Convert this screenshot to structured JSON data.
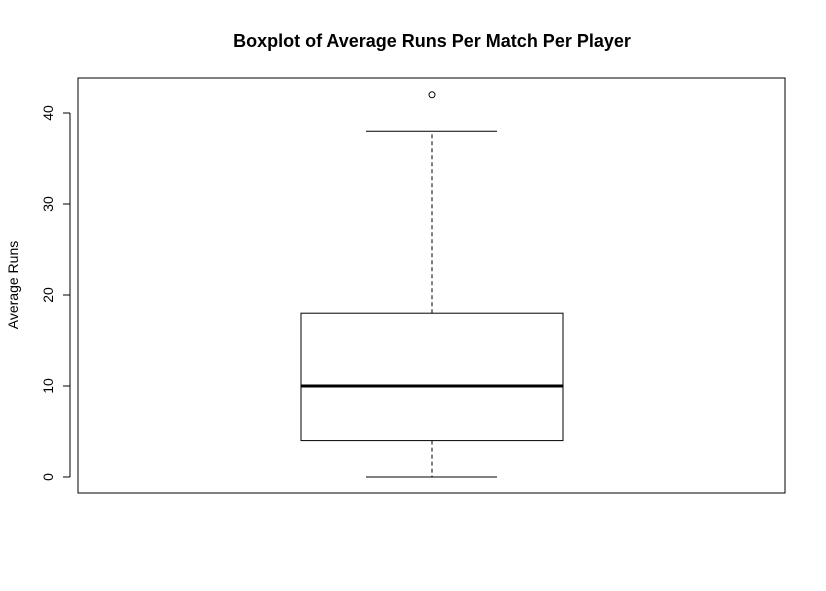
{
  "chart_data": {
    "type": "boxplot",
    "title": "Boxplot of Average Runs Per Match Per Player",
    "xlabel": "",
    "ylabel": "Average Runs",
    "ylim": [
      0,
      42
    ],
    "y_ticks": [
      0,
      10,
      20,
      30,
      40
    ],
    "y_tick_labels": [
      "0",
      "10",
      "20",
      "30",
      "40"
    ],
    "grid": false,
    "box": {
      "whisker_low": 0,
      "q1": 4,
      "median": 10,
      "q3": 18,
      "whisker_high": 38,
      "outliers": [
        42
      ]
    }
  }
}
